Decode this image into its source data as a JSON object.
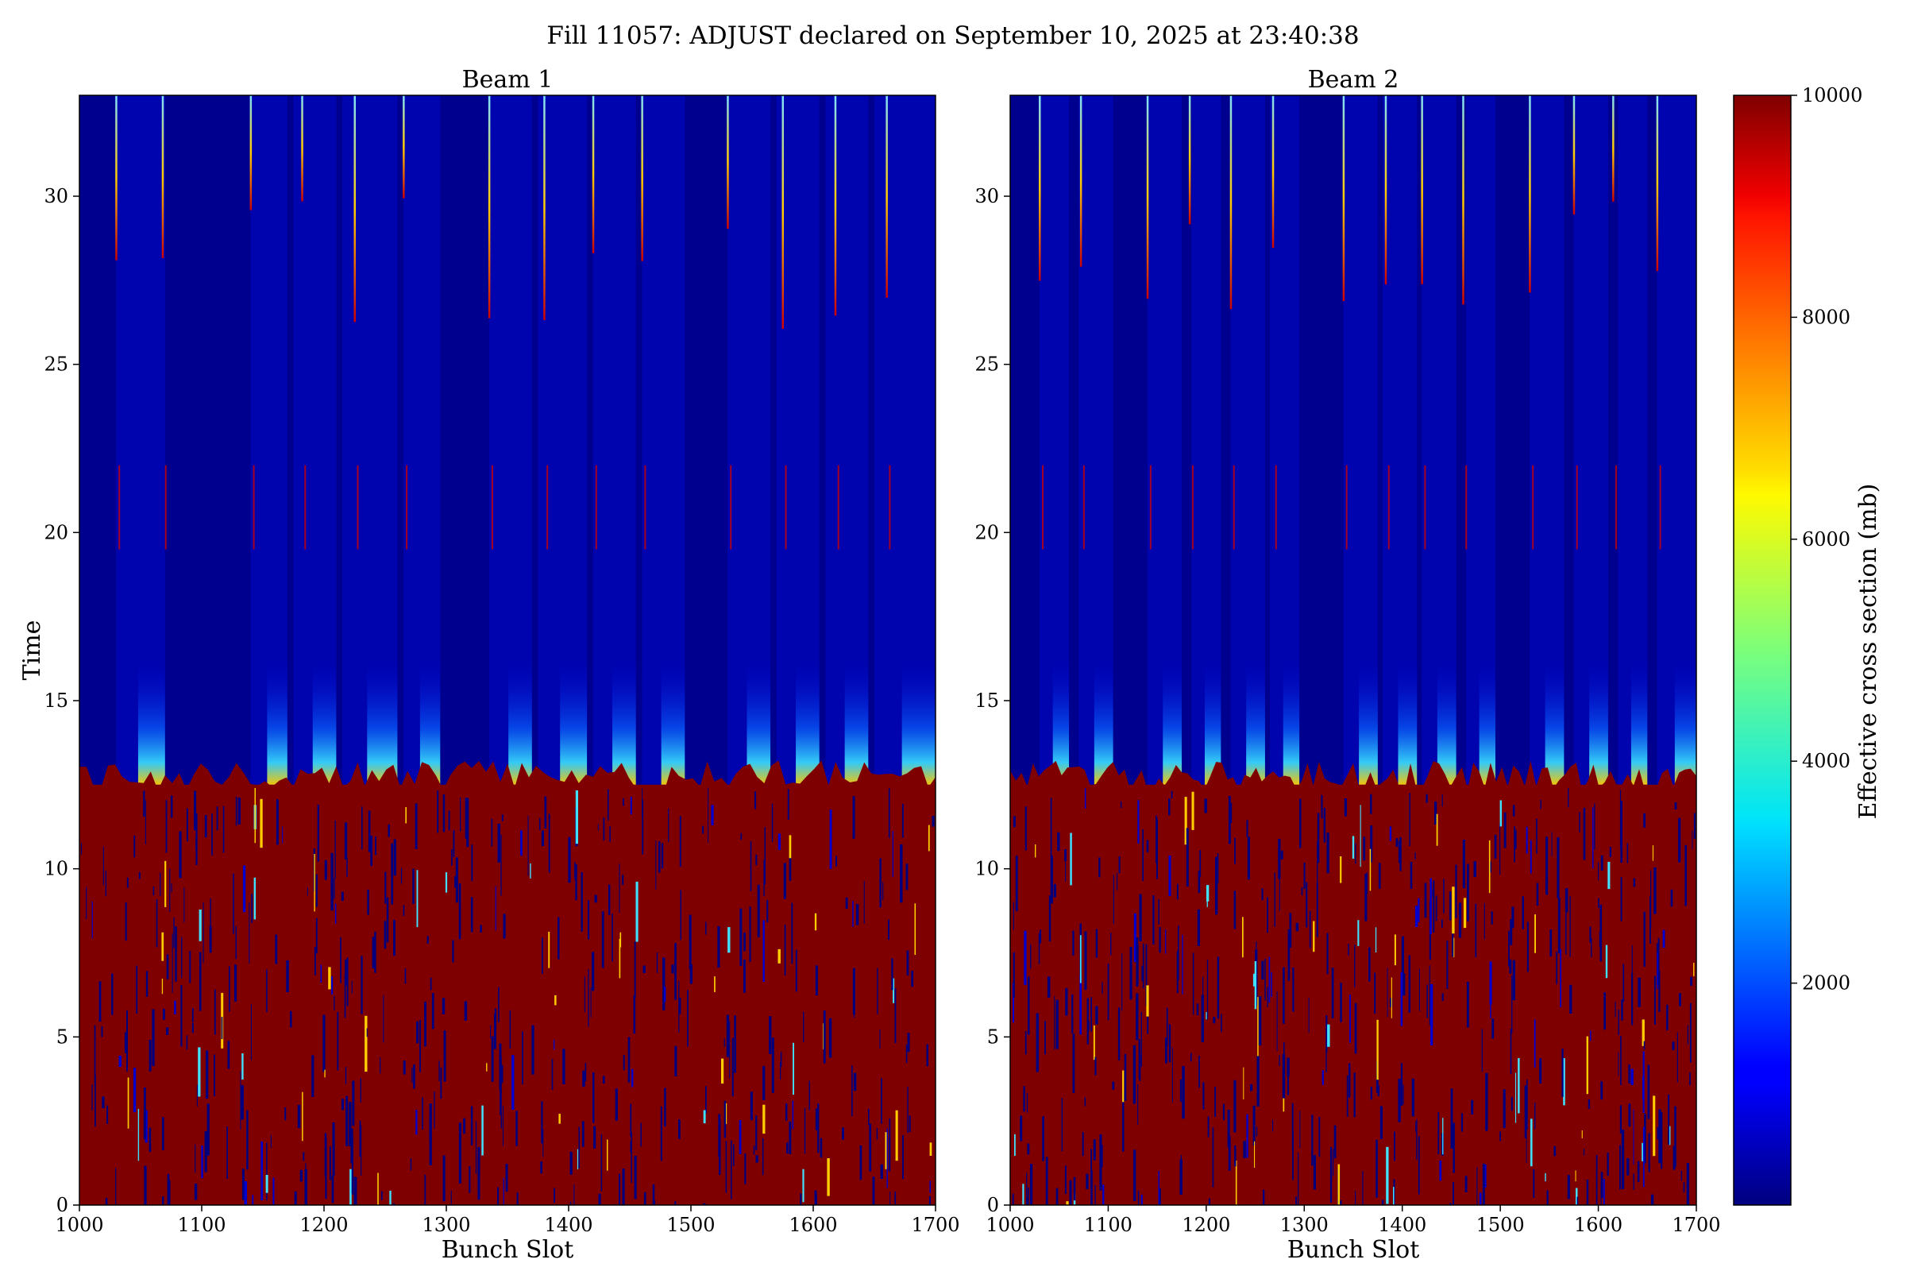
{
  "figure": {
    "suptitle": "Fill 11057: ADJUST declared on September 10, 2025 at 23:40:38"
  },
  "chart_data": [
    {
      "type": "heatmap",
      "title": "Beam 1",
      "xlabel": "Bunch Slot",
      "ylabel": "Time",
      "xlim": [
        1000,
        1700
      ],
      "ylim": [
        0,
        33
      ],
      "xticks": [
        1000,
        1100,
        1200,
        1300,
        1400,
        1500,
        1600,
        1700
      ],
      "yticks": [
        0,
        5,
        10,
        15,
        20,
        25,
        30
      ],
      "transition_time": 12.5,
      "before_transition_value": 10000,
      "train_starts": [
        1030,
        1140,
        1175,
        1215,
        1265,
        1335,
        1375,
        1420,
        1460,
        1530,
        1570,
        1610,
        1650
      ],
      "train_ends": [
        1070,
        1170,
        1210,
        1260,
        1295,
        1370,
        1415,
        1455,
        1495,
        1565,
        1605,
        1645,
        1700
      ],
      "bright_columns": [
        1030,
        1068,
        1140,
        1182,
        1225,
        1265,
        1335,
        1380,
        1420,
        1460,
        1530,
        1575,
        1618,
        1660
      ]
    },
    {
      "type": "heatmap",
      "title": "Beam 2",
      "xlabel": "Bunch Slot",
      "ylabel": "",
      "xlim": [
        1000,
        1700
      ],
      "ylim": [
        0,
        33
      ],
      "xticks": [
        1000,
        1100,
        1200,
        1300,
        1400,
        1500,
        1600,
        1700
      ],
      "yticks": [
        0,
        5,
        10,
        15,
        20,
        25,
        30
      ],
      "transition_time": 12.5,
      "before_transition_value": 10000,
      "train_starts": [
        1030,
        1070,
        1140,
        1185,
        1225,
        1265,
        1340,
        1380,
        1420,
        1465,
        1530,
        1575,
        1620,
        1660
      ],
      "train_ends": [
        1060,
        1105,
        1175,
        1215,
        1260,
        1295,
        1375,
        1415,
        1455,
        1495,
        1565,
        1610,
        1650,
        1700
      ],
      "bright_columns": [
        1030,
        1072,
        1140,
        1183,
        1225,
        1268,
        1340,
        1383,
        1420,
        1462,
        1530,
        1575,
        1615,
        1660
      ]
    }
  ],
  "colorbar": {
    "label": "Effective cross section (mb)",
    "range": [
      0,
      10000
    ],
    "ticks": [
      2000,
      4000,
      6000,
      8000,
      10000
    ],
    "colormap": "jet"
  }
}
